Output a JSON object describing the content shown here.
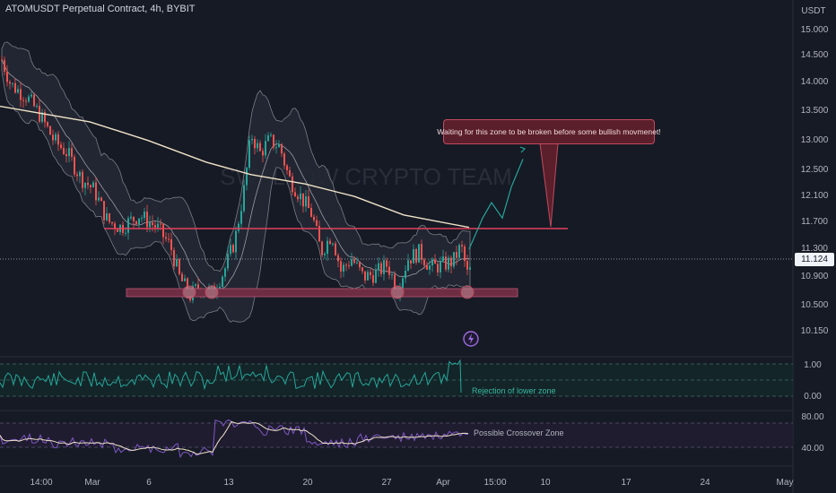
{
  "header": {
    "title": "ATOMUSDT Perpetual Contract, 4h, BYBIT"
  },
  "price_axis": {
    "currency": "USDT",
    "ticks": [
      "15.000",
      "14.500",
      "14.000",
      "13.500",
      "13.000",
      "12.500",
      "12.100",
      "11.700",
      "11.300",
      "10.900",
      "10.500",
      "10.150"
    ],
    "current_price": "11.124"
  },
  "time_axis": {
    "labels": [
      "14:00",
      "Mar",
      "6",
      "13",
      "20",
      "27",
      "Apr",
      "15:00",
      "10",
      "17",
      "24",
      "May"
    ]
  },
  "watermark": "SWALLOW CRYPTO TEAM",
  "annotation": {
    "text": "Waiting for this zone to be broken before some bullish movmenet!"
  },
  "indicator1": {
    "ticks": [
      "1.00",
      "0.00"
    ],
    "note": "Rejection of lower zone"
  },
  "indicator2": {
    "ticks": [
      "80.00",
      "40.00"
    ],
    "note": "Possible Crossover Zone"
  },
  "alert_icon": "lightning-bolt-icon",
  "colors": {
    "background": "#161a25",
    "up_candle": "#26a69a",
    "down_candle": "#ef5350",
    "resistance_line": "#e2415b",
    "support_zone": "#6e2d43",
    "moving_average": "#efe3c8",
    "bollinger_fill": "#2a2e39",
    "oscillator": "#26a69a",
    "rsi": "#7e57c2"
  },
  "chart_data": {
    "type": "candlestick",
    "timeframe": "4h",
    "y_range": [
      10.15,
      15.0
    ],
    "resistance_level": 11.6,
    "support_zone": [
      10.62,
      10.72
    ],
    "current_price": 11.124,
    "moving_average": [
      {
        "t": "Feb 23",
        "v": 13.75
      },
      {
        "t": "Mar 1",
        "v": 13.5
      },
      {
        "t": "Mar 6",
        "v": 13.2
      },
      {
        "t": "Mar 11",
        "v": 12.85
      },
      {
        "t": "Mar 15",
        "v": 12.65
      },
      {
        "t": "Mar 20",
        "v": 12.5
      },
      {
        "t": "Mar 24",
        "v": 12.3
      },
      {
        "t": "Mar 28",
        "v": 12.0
      },
      {
        "t": "Apr 1",
        "v": 11.8
      }
    ],
    "projection": [
      {
        "t": "Apr 1",
        "v": 11.45
      },
      {
        "t": "Apr 3",
        "v": 11.95
      },
      {
        "t": "Apr 4",
        "v": 12.2
      },
      {
        "t": "Apr 5",
        "v": 11.95
      },
      {
        "t": "Apr 6",
        "v": 12.45
      },
      {
        "t": "Apr 7",
        "v": 12.9
      }
    ],
    "support_touches": [
      "Mar 9",
      "Mar 10",
      "Mar 27",
      "Apr 1"
    ],
    "indicator1_range": [
      0.0,
      1.0
    ],
    "indicator2_range": [
      40.0,
      80.0
    ]
  }
}
